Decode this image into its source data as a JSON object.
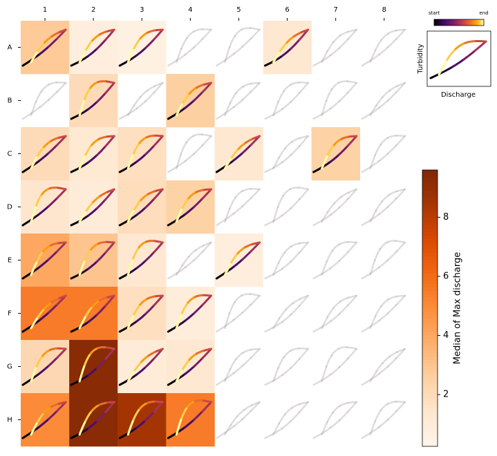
{
  "chart_data": {
    "type": "heatmap",
    "columns": [
      "1",
      "2",
      "3",
      "4",
      "5",
      "6",
      "7",
      "8"
    ],
    "rows": [
      "A",
      "B",
      "C",
      "D",
      "E",
      "F",
      "G",
      "H"
    ],
    "values": [
      [
        2.8,
        0.8,
        0.6,
        null,
        null,
        1.3,
        null,
        null
      ],
      [
        null,
        2.0,
        null,
        2.6,
        null,
        null,
        null,
        null
      ],
      [
        2.0,
        1.2,
        1.8,
        null,
        1.3,
        null,
        2.5,
        null
      ],
      [
        1.4,
        1.0,
        1.9,
        2.5,
        null,
        null,
        null,
        null
      ],
      [
        4.0,
        3.0,
        1.3,
        null,
        0.8,
        null,
        null,
        null
      ],
      [
        5.5,
        5.5,
        1.8,
        0.9,
        null,
        null,
        null,
        null
      ],
      [
        2.2,
        9.3,
        1.0,
        1.3,
        null,
        null,
        null,
        null
      ],
      [
        5.0,
        9.3,
        8.5,
        5.5,
        null,
        null,
        null,
        null
      ]
    ],
    "colorbar": {
      "label": "Median of Max discharge",
      "lim": [
        0.25,
        9.6
      ],
      "ticks": [
        2,
        4,
        6,
        8
      ]
    },
    "legend": {
      "start": "start",
      "end": "end",
      "ylabel": "Turbidity",
      "xlabel": "Discharge"
    }
  }
}
